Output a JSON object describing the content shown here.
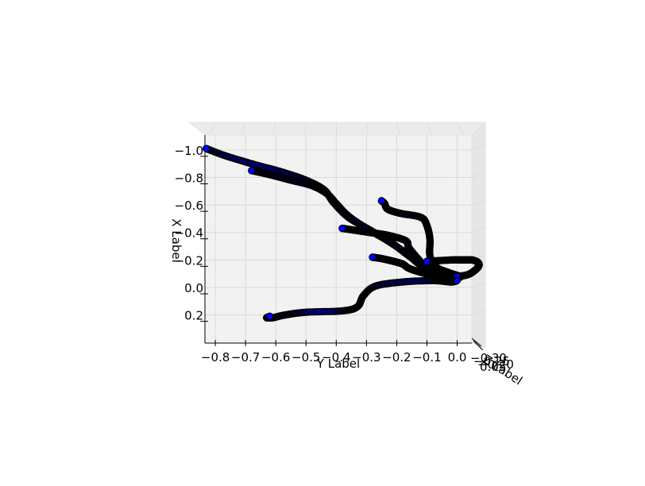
{
  "chart_data": {
    "type": "3d-scatter-trajectories",
    "xlabel": "X Label",
    "ylabel": "Y Label",
    "zlabel": "Z Label",
    "x_ticks": [
      "−1.0",
      "−0.8",
      "−0.6",
      "−0.4",
      "−0.2",
      "0.0",
      "0.2"
    ],
    "y_ticks": [
      "−0.8",
      "−0.7",
      "−0.6",
      "−0.5",
      "−0.4",
      "−0.3",
      "−0.2",
      "−0.1",
      "0.0"
    ],
    "z_ticks_visible": "overlapping (unreadable)",
    "x_range": [
      0.3,
      -1.1
    ],
    "y_range": [
      -0.83,
      0.07
    ],
    "grid": true,
    "marker_color": "#0000ff",
    "marker_edge_color": "#000000",
    "trajectories": [
      {
        "points": [
          [
            -1.01,
            -0.83
          ],
          [
            -0.96,
            -0.77
          ],
          [
            -0.9,
            -0.68
          ],
          [
            -0.84,
            -0.58
          ],
          [
            -0.78,
            -0.5
          ],
          [
            -0.71,
            -0.44
          ],
          [
            -0.62,
            -0.41
          ],
          [
            -0.51,
            -0.36
          ],
          [
            -0.42,
            -0.29
          ],
          [
            -0.33,
            -0.22
          ],
          [
            -0.23,
            -0.16
          ],
          [
            -0.16,
            -0.11
          ],
          [
            -0.09,
            -0.05
          ],
          [
            -0.06,
            0.0
          ]
        ]
      },
      {
        "points": [
          [
            -0.85,
            -0.68
          ],
          [
            -0.82,
            -0.62
          ],
          [
            -0.78,
            -0.55
          ],
          [
            -0.74,
            -0.48
          ],
          [
            -0.68,
            -0.43
          ],
          [
            -0.61,
            -0.4
          ],
          [
            -0.52,
            -0.36
          ],
          [
            -0.43,
            -0.3
          ],
          [
            -0.34,
            -0.23
          ],
          [
            -0.25,
            -0.17
          ],
          [
            -0.16,
            -0.12
          ],
          [
            -0.1,
            -0.07
          ],
          [
            -0.07,
            0.0
          ]
        ]
      },
      {
        "points": [
          [
            -0.63,
            -0.25
          ],
          [
            -0.61,
            -0.24
          ],
          [
            -0.57,
            -0.23
          ],
          [
            -0.54,
            -0.19
          ],
          [
            -0.51,
            -0.12
          ],
          [
            -0.45,
            -0.1
          ],
          [
            -0.35,
            -0.09
          ],
          [
            -0.23,
            -0.09
          ],
          [
            -0.15,
            -0.07
          ],
          [
            -0.11,
            -0.03
          ],
          [
            -0.08,
            0.01
          ],
          [
            -0.07,
            0.0
          ]
        ]
      },
      {
        "points": [
          [
            -0.43,
            -0.38
          ],
          [
            -0.42,
            -0.35
          ],
          [
            -0.4,
            -0.29
          ],
          [
            -0.38,
            -0.23
          ],
          [
            -0.34,
            -0.17
          ],
          [
            -0.29,
            -0.16
          ],
          [
            -0.21,
            -0.13
          ],
          [
            -0.14,
            -0.1
          ],
          [
            -0.09,
            -0.06
          ],
          [
            -0.07,
            0.0
          ]
        ]
      },
      {
        "points": [
          [
            -0.22,
            -0.28
          ],
          [
            -0.21,
            -0.25
          ],
          [
            -0.19,
            -0.21
          ],
          [
            -0.17,
            -0.18
          ],
          [
            -0.14,
            -0.16
          ],
          [
            -0.11,
            -0.12
          ],
          [
            -0.08,
            -0.06
          ],
          [
            -0.07,
            0.0
          ]
        ]
      },
      {
        "points": [
          [
            -0.19,
            -0.1
          ],
          [
            -0.2,
            -0.02
          ],
          [
            -0.2,
            0.02
          ],
          [
            -0.2,
            0.05
          ],
          [
            -0.18,
            0.07
          ],
          [
            -0.15,
            0.07
          ],
          [
            -0.11,
            0.05
          ],
          [
            -0.09,
            0.03
          ],
          [
            -0.08,
            0.0
          ]
        ]
      },
      {
        "points": [
          [
            0.21,
            -0.62
          ],
          [
            0.22,
            -0.63
          ],
          [
            0.22,
            -0.61
          ],
          [
            0.2,
            -0.57
          ],
          [
            0.18,
            -0.5
          ],
          [
            0.17,
            -0.38
          ],
          [
            0.14,
            -0.33
          ],
          [
            0.06,
            -0.31
          ],
          [
            -0.01,
            -0.27
          ],
          [
            -0.04,
            -0.18
          ],
          [
            -0.05,
            -0.08
          ],
          [
            -0.04,
            -0.02
          ],
          [
            -0.05,
            0.0
          ]
        ]
      }
    ]
  }
}
